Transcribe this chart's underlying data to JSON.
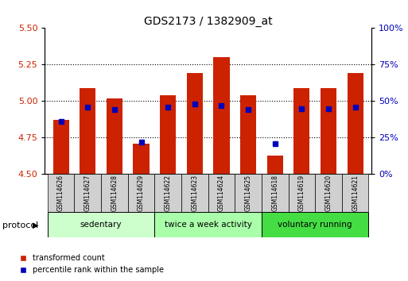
{
  "title": "GDS2173 / 1382909_at",
  "samples": [
    "GSM114626",
    "GSM114627",
    "GSM114628",
    "GSM114629",
    "GSM114622",
    "GSM114623",
    "GSM114624",
    "GSM114625",
    "GSM114618",
    "GSM114619",
    "GSM114620",
    "GSM114621"
  ],
  "bar_values": [
    4.87,
    5.09,
    5.02,
    4.71,
    5.04,
    5.19,
    5.3,
    5.04,
    4.63,
    5.09,
    5.09,
    5.19
  ],
  "blue_values": [
    36,
    46,
    44,
    22,
    46,
    48,
    47,
    44,
    21,
    45,
    45,
    46
  ],
  "bar_base": 4.5,
  "ylim_left": [
    4.5,
    5.5
  ],
  "ylim_right": [
    0,
    100
  ],
  "yticks_left": [
    4.5,
    4.75,
    5.0,
    5.25,
    5.5
  ],
  "yticks_right": [
    0,
    25,
    50,
    75,
    100
  ],
  "ytick_labels_right": [
    "0%",
    "25%",
    "50%",
    "75%",
    "100%"
  ],
  "bar_color": "#cc2200",
  "blue_color": "#0000bb",
  "grid_color": "#000000",
  "protocol_groups": [
    {
      "label": "sedentary",
      "start": 0,
      "end": 3,
      "color": "#ccffcc"
    },
    {
      "label": "twice a week activity",
      "start": 4,
      "end": 7,
      "color": "#aaffaa"
    },
    {
      "label": "voluntary running",
      "start": 8,
      "end": 11,
      "color": "#44dd44"
    }
  ],
  "legend_labels": [
    "transformed count",
    "percentile rank within the sample"
  ],
  "legend_colors": [
    "#cc2200",
    "#0000bb"
  ],
  "tick_label_color_left": "#cc2200",
  "tick_label_color_right": "#0000bb",
  "protocol_label": "protocol",
  "bar_width": 0.6,
  "blue_size": 5
}
